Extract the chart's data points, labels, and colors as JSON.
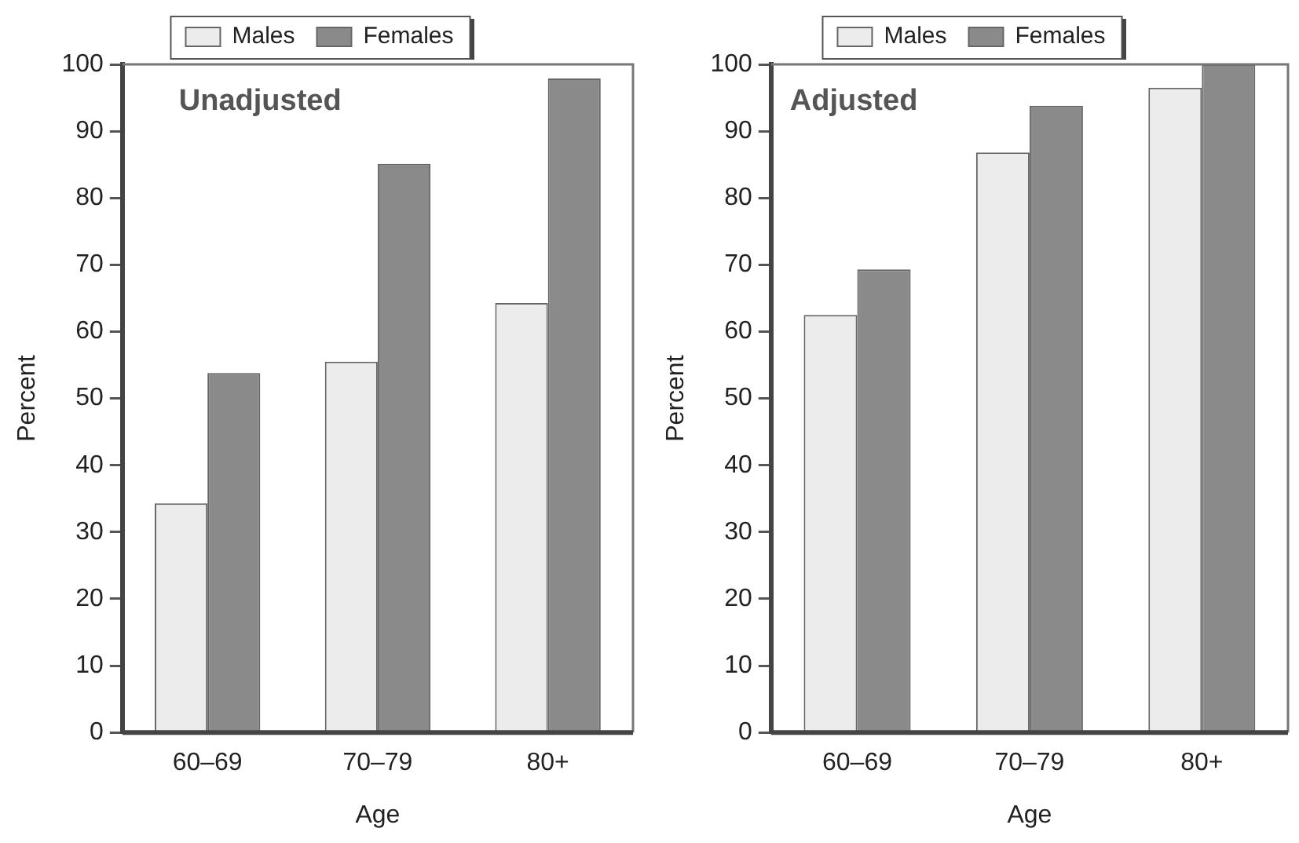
{
  "chart_data": [
    {
      "type": "bar",
      "title": "Unadjusted",
      "xlabel": "Age",
      "ylabel": "Percent",
      "categories": [
        "60–69",
        "70–79",
        "80+"
      ],
      "series": [
        {
          "name": "Males",
          "color": "#ececec",
          "values": [
            34.3,
            55.5,
            64.3
          ]
        },
        {
          "name": "Females",
          "color": "#8a8a8a",
          "values": [
            53.8,
            85.1,
            97.9
          ]
        }
      ],
      "ylim": [
        0,
        100
      ],
      "yticks": [
        0,
        10,
        20,
        30,
        40,
        50,
        60,
        70,
        80,
        90,
        100
      ],
      "grid": false,
      "legend": "top"
    },
    {
      "type": "bar",
      "title": "Adjusted",
      "xlabel": "Age",
      "ylabel": "Percent",
      "categories": [
        "60–69",
        "70–79",
        "80+"
      ],
      "series": [
        {
          "name": "Males",
          "color": "#ececec",
          "values": [
            62.5,
            86.8,
            96.5
          ]
        },
        {
          "name": "Females",
          "color": "#8a8a8a",
          "values": [
            69.3,
            93.8,
            100
          ]
        }
      ],
      "ylim": [
        0,
        100
      ],
      "yticks": [
        0,
        10,
        20,
        30,
        40,
        50,
        60,
        70,
        80,
        90,
        100
      ],
      "grid": false,
      "legend": "top"
    }
  ]
}
